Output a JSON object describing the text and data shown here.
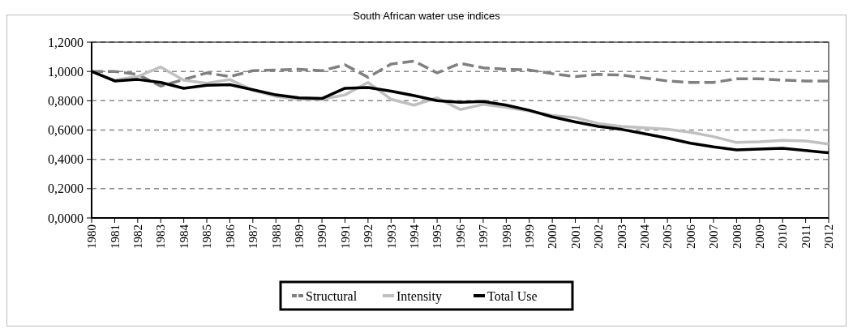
{
  "chart_data": {
    "type": "line",
    "title": "South African water use indices",
    "categories": [
      "1980",
      "1981",
      "1982",
      "1983",
      "1984",
      "1985",
      "1986",
      "1987",
      "1988",
      "1989",
      "1990",
      "1991",
      "1992",
      "1993",
      "1994",
      "1995",
      "1996",
      "1997",
      "1998",
      "1999",
      "2000",
      "2001",
      "2002",
      "2003",
      "2004",
      "2005",
      "2006",
      "2007",
      "2008",
      "2009",
      "2010",
      "2011",
      "2012"
    ],
    "series": [
      {
        "name": "Structural",
        "color": "#808080",
        "line_style": "dashed",
        "values": [
          1.0,
          1.0,
          0.98,
          0.9,
          0.945,
          0.99,
          0.965,
          1.005,
          1.01,
          1.015,
          1.005,
          1.045,
          0.96,
          1.05,
          1.07,
          0.99,
          1.055,
          1.025,
          1.015,
          1.01,
          0.985,
          0.965,
          0.98,
          0.975,
          0.955,
          0.935,
          0.925,
          0.925,
          0.95,
          0.95,
          0.94,
          0.935,
          0.935
        ]
      },
      {
        "name": "Intensity",
        "color": "#c0c0c0",
        "line_style": "solid",
        "values": [
          1.0,
          0.94,
          0.965,
          1.03,
          0.94,
          0.92,
          0.945,
          0.87,
          0.83,
          0.81,
          0.81,
          0.84,
          0.925,
          0.81,
          0.77,
          0.82,
          0.74,
          0.775,
          0.755,
          0.73,
          0.7,
          0.685,
          0.645,
          0.625,
          0.615,
          0.605,
          0.585,
          0.555,
          0.515,
          0.52,
          0.53,
          0.525,
          0.505
        ]
      },
      {
        "name": "Total Use",
        "color": "#000000",
        "line_style": "solid",
        "values": [
          1.0,
          0.935,
          0.945,
          0.925,
          0.885,
          0.905,
          0.91,
          0.875,
          0.84,
          0.82,
          0.815,
          0.885,
          0.89,
          0.865,
          0.835,
          0.8,
          0.79,
          0.795,
          0.77,
          0.735,
          0.69,
          0.655,
          0.625,
          0.605,
          0.575,
          0.545,
          0.51,
          0.485,
          0.465,
          0.47,
          0.475,
          0.46,
          0.445
        ]
      }
    ],
    "ylim": [
      0,
      1.2
    ],
    "yticks": [
      {
        "value": 0,
        "label": "0,0000"
      },
      {
        "value": 0.2,
        "label": "0,2000"
      },
      {
        "value": 0.4,
        "label": "0,4000"
      },
      {
        "value": 0.6,
        "label": "0,6000"
      },
      {
        "value": 0.8,
        "label": "0,8000"
      },
      {
        "value": 1.0,
        "label": "1,0000"
      },
      {
        "value": 1.2,
        "label": "1,2000"
      }
    ],
    "grid": "y",
    "legend": "bottom",
    "marker": "none"
  }
}
